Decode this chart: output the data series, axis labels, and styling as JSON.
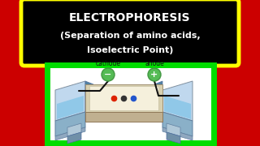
{
  "bg_color": "#cc0000",
  "title_box_bg": "#000000",
  "title_box_edge": "#ffff00",
  "title_line1": "ELECTROPHORESIS",
  "title_line2": "(Separation of amino acids,",
  "title_line3": "Isoelectric Point)",
  "title_color": "#ffffff",
  "diagram_box_bg": "#ffffff",
  "diagram_box_edge": "#00dd00",
  "cathode_label": "cathode",
  "anode_label": "anode",
  "electrode_color_outer": "#449944",
  "electrode_color_inner": "#55bb55",
  "cathode_sign": "−",
  "anode_sign": "+",
  "liq_top": "#c0d8ee",
  "liq_side_front": "#8ab0c8",
  "liq_side_dark": "#5080a0",
  "gel_top": "#e8e0c0",
  "gel_strip": "#f5f0dc",
  "gel_front": "#c0b090",
  "dot_red": "#dd2200",
  "dot_dark": "#333333",
  "dot_blue": "#2255cc",
  "wire_color": "#111111",
  "cup_color": "#b0c8d8",
  "cup_front": "#7090a8"
}
